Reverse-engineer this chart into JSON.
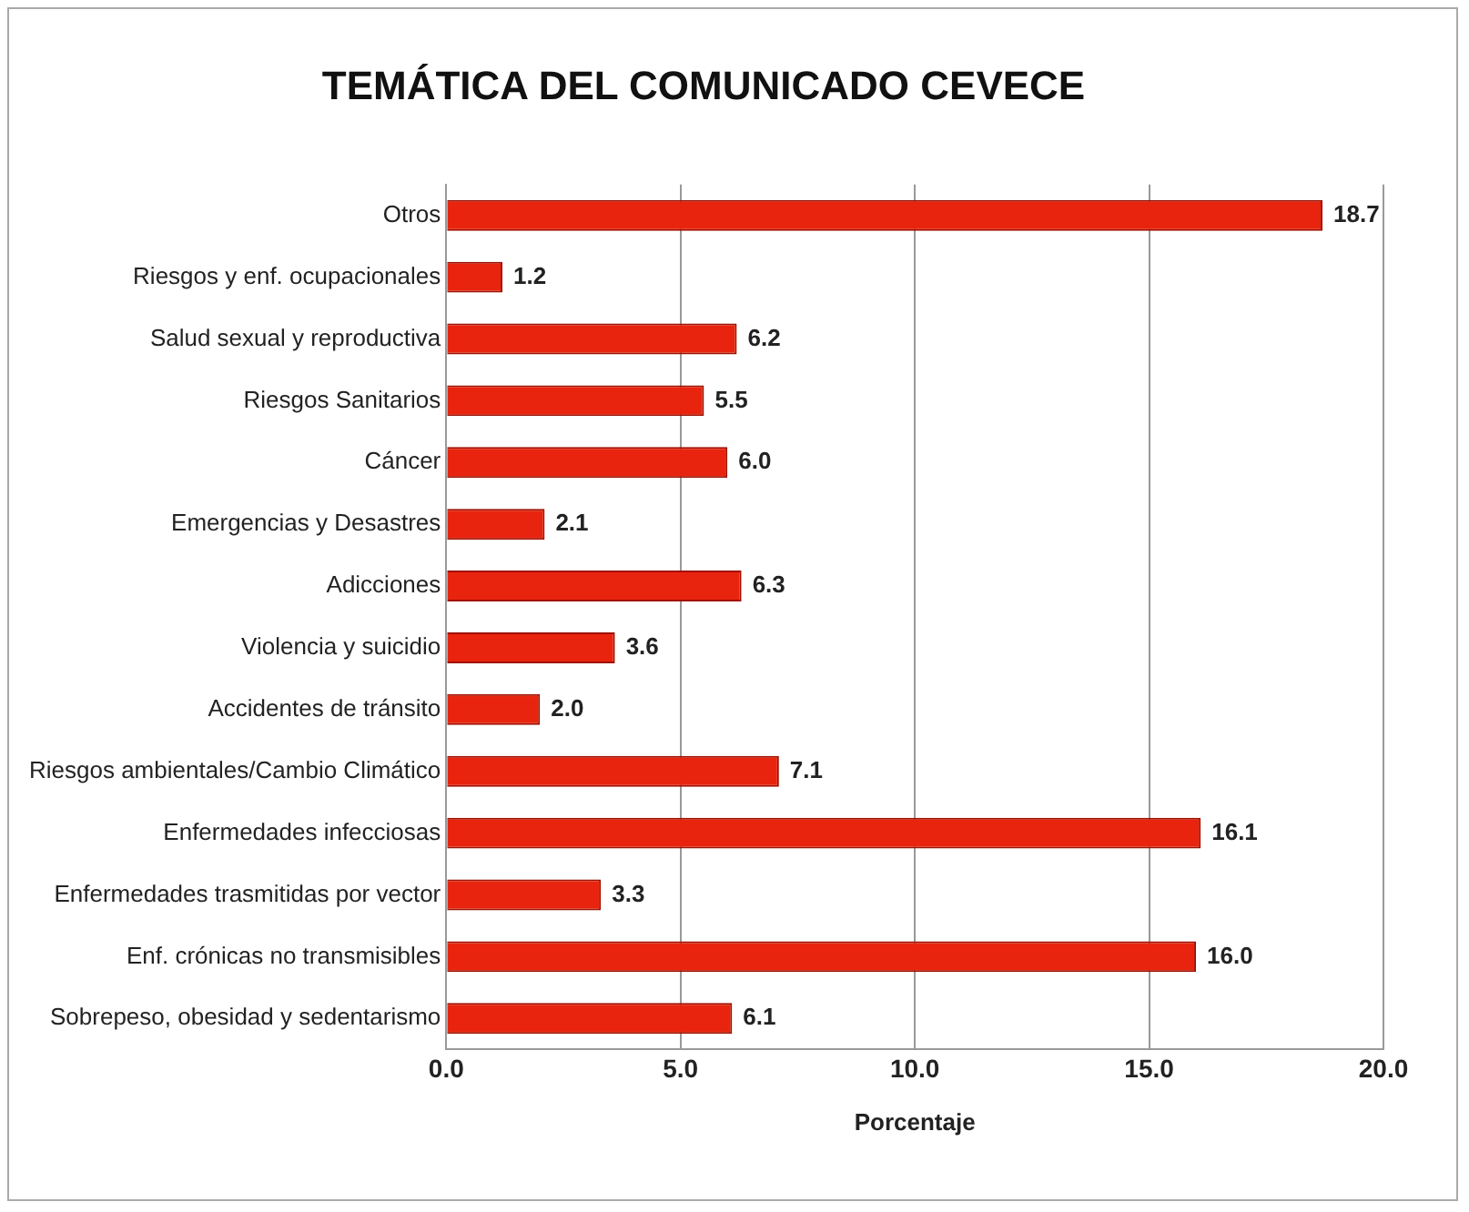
{
  "chart_data": {
    "type": "bar",
    "orientation": "horizontal",
    "title": "TEMÁTICA DEL COMUNICADO CEVECE",
    "xlabel": "Porcentaje",
    "categories": [
      "Otros",
      "Riesgos y enf. ocupacionales",
      "Salud sexual y reproductiva",
      "Riesgos Sanitarios",
      "Cáncer",
      "Emergencias y Desastres",
      "Adicciones",
      "Violencia y suicidio",
      "Accidentes de tránsito",
      "Riesgos ambientales/Cambio Climático",
      "Enfermedades infecciosas",
      "Enfermedades trasmitidas por vector",
      "Enf. crónicas no transmisibles",
      "Sobrepeso, obesidad y sedentarismo"
    ],
    "values": [
      18.7,
      1.2,
      6.2,
      5.5,
      6.0,
      2.1,
      6.3,
      3.6,
      2.0,
      7.1,
      16.1,
      3.3,
      16.0,
      6.1
    ],
    "value_labels": [
      "18.7",
      "1.2",
      "6.2",
      "5.5",
      "6.0",
      "2.1",
      "6.3",
      "3.6",
      "2.0",
      "7.1",
      "16.1",
      "3.3",
      "16.0",
      "6.1"
    ],
    "color": "#e8240e",
    "xlim": [
      0,
      20
    ],
    "xticks": [
      {
        "value": 0,
        "label": "0.0"
      },
      {
        "value": 5,
        "label": "5.0"
      },
      {
        "value": 10,
        "label": "10.0"
      },
      {
        "value": 15,
        "label": "15.0"
      },
      {
        "value": 20,
        "label": "20.0"
      }
    ],
    "grid": "x",
    "legend": false
  }
}
